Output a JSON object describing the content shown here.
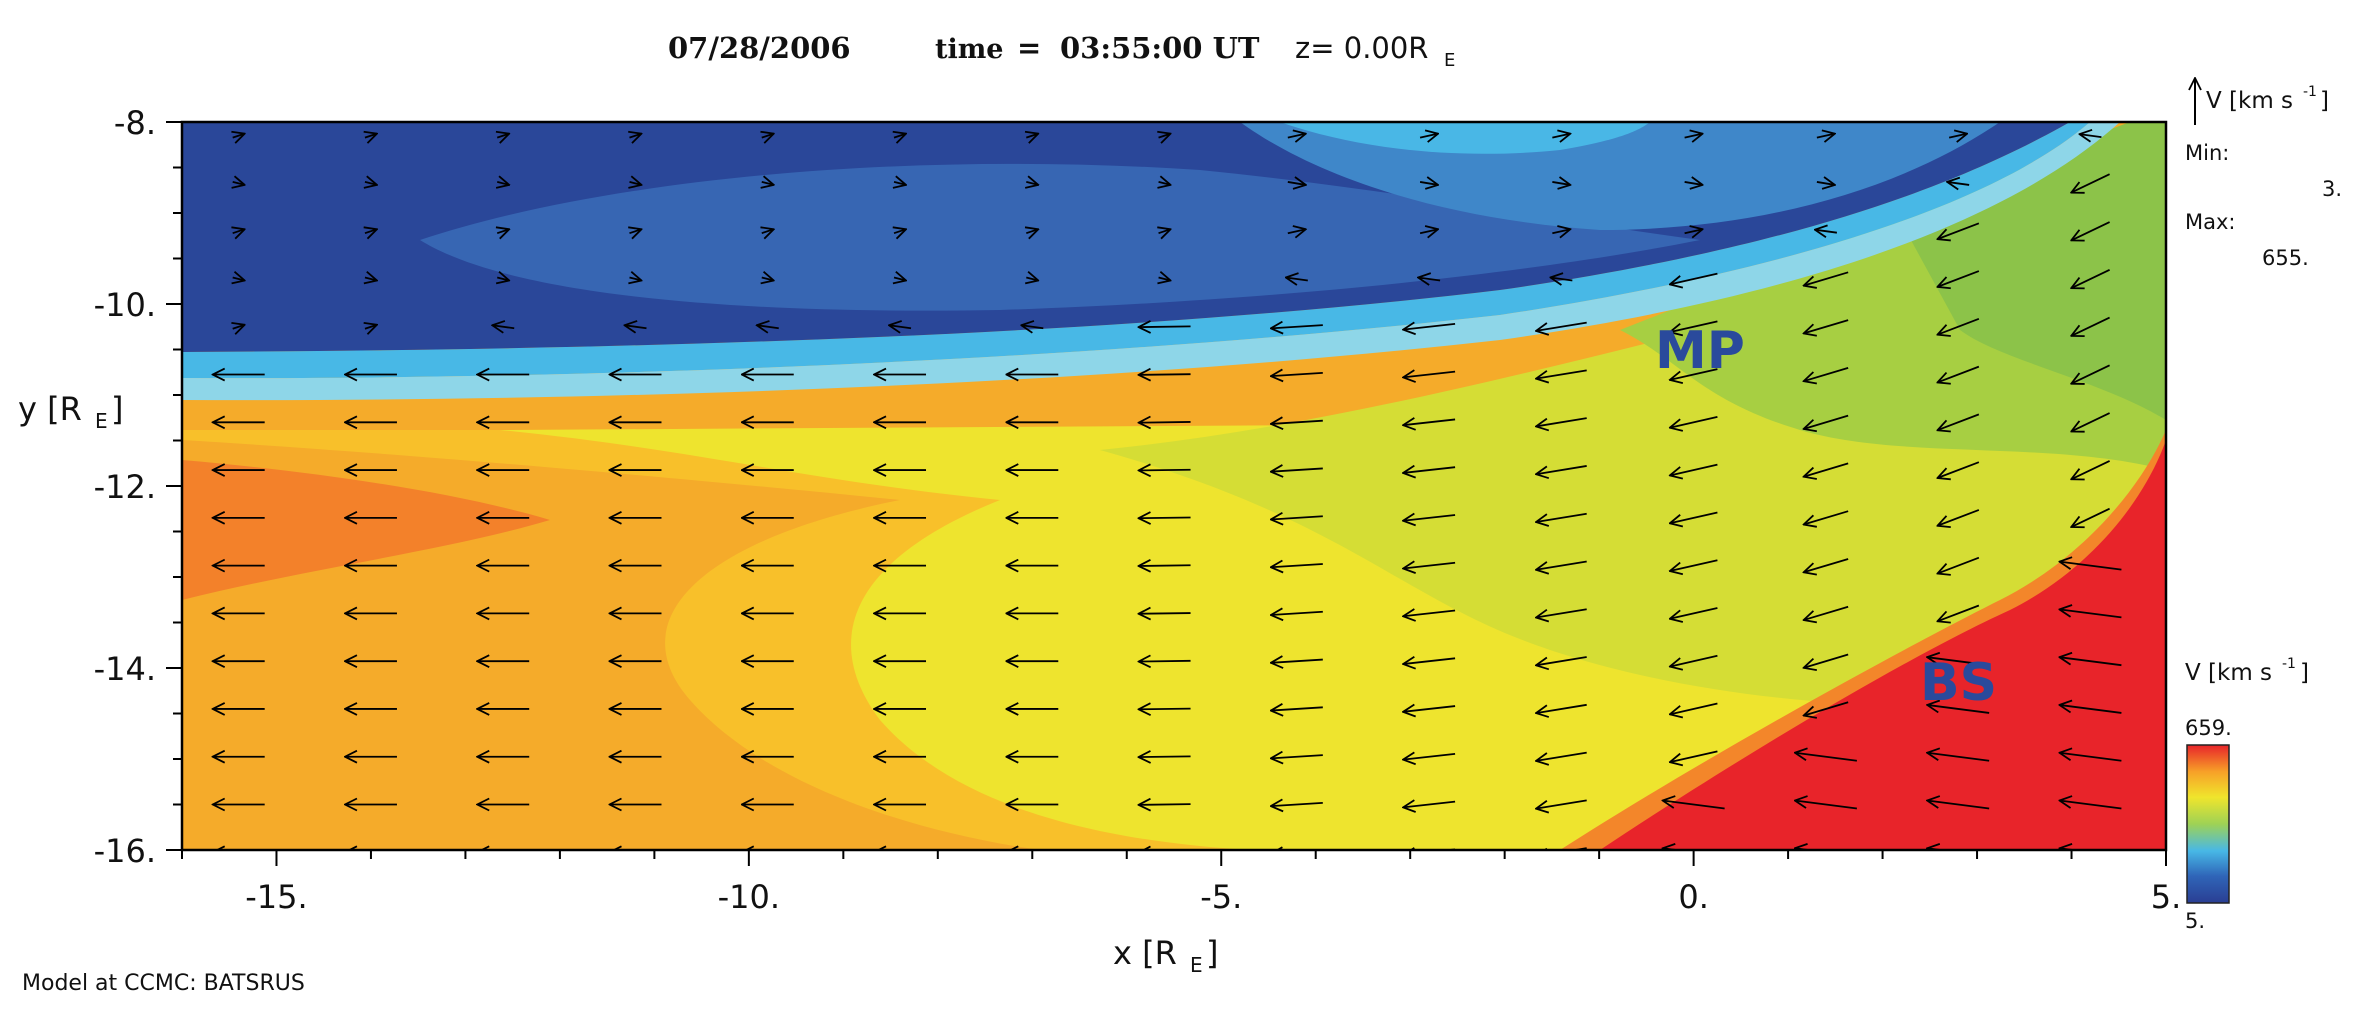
{
  "header": {
    "date": "07/28/2006",
    "time_label": "time",
    "equals": "=",
    "time_value": "03:55:00 UT",
    "z_prefix": "z= 0.00R",
    "z_sub": "E"
  },
  "footer": {
    "credit": "Model at CCMC: BATSRUS"
  },
  "legend": {
    "vector_label": "V [km s",
    "vector_sup": "-1",
    "vector_close": "]",
    "min_label": "Min:",
    "min_value": "3.",
    "max_label": "Max:",
    "max_value": "655.",
    "colorbar_label": "V [km s",
    "colorbar_sup": "-1",
    "colorbar_close": "]",
    "colorbar_max": "659.",
    "colorbar_min": "5.",
    "colorbar_colors": [
      "#2a3e93",
      "#2f65b8",
      "#48b8e6",
      "#9ed255",
      "#f0e52c",
      "#f7a128",
      "#e8242a"
    ]
  },
  "annotations": {
    "mp": "MP",
    "bs": "BS"
  },
  "chart_data": {
    "type": "heatmap",
    "xlabel_main": "x [R",
    "xlabel_sub": "E",
    "xlabel_close": "]",
    "ylabel_main": "y [R",
    "ylabel_sub": "E",
    "ylabel_close": "]",
    "xlim": [
      -16,
      5
    ],
    "ylim": [
      -16,
      -8
    ],
    "x_ticks": [
      -15,
      -10,
      -5,
      0,
      5
    ],
    "x_tick_labels": [
      "-15.",
      "-10.",
      "-5.",
      "0.",
      "5."
    ],
    "y_ticks": [
      -8,
      -10,
      -12,
      -14,
      -16
    ],
    "y_tick_labels": [
      "-8.",
      "-10.",
      "-12.",
      "-14.",
      "-16."
    ],
    "colorscale": {
      "min": 5,
      "max": 659
    },
    "regions": [
      {
        "name": "magnetopause (MP)",
        "boundary": [
          [
            -16,
            -10.9
          ],
          [
            -10,
            -10.8
          ],
          [
            -5,
            -10.4
          ],
          [
            0,
            -9.9
          ],
          [
            3,
            -9.2
          ],
          [
            5,
            -8
          ]
        ]
      },
      {
        "name": "bow shock (BS)",
        "boundary": [
          [
            -1,
            -16
          ],
          [
            1,
            -15
          ],
          [
            3,
            -13.8
          ],
          [
            5,
            -11.4
          ]
        ]
      }
    ]
  }
}
